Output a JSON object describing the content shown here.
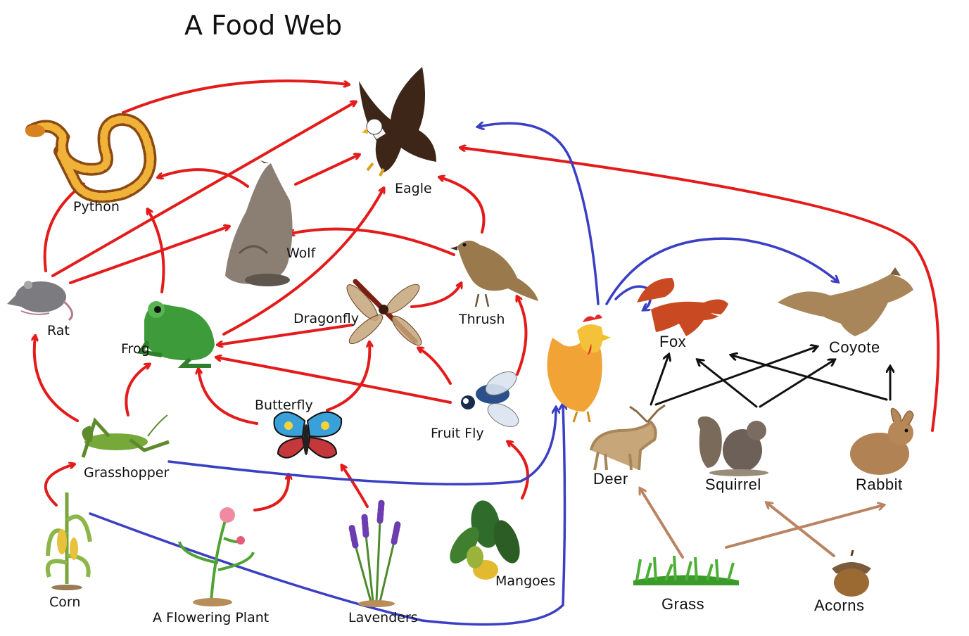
{
  "title": "A Food Web",
  "organisms": {
    "eagle": "Eagle",
    "python": "Python",
    "wolf": "Wolf",
    "rat": "Rat",
    "frog": "Frog",
    "dragonfly": "Dragonfly",
    "thrush": "Thrush",
    "butterfly": "Butterfly",
    "fruit_fly": "Fruit Fly",
    "grasshopper": "Grasshopper",
    "corn": "Corn",
    "flowering_plant": "A Flowering Plant",
    "lavenders": "Lavenders",
    "mangoes": "Mangoes",
    "fox": "Fox",
    "coyote": "Coyote",
    "deer": "Deer",
    "squirrel": "Squirrel",
    "rabbit": "Rabbit",
    "grass": "Grass",
    "acorns": "Acorns"
  },
  "colors": {
    "red_arrow": "#e31b1b",
    "blue_arrow": "#3a3fc4",
    "black_arrow": "#111111",
    "brown_arrow": "#b98462"
  },
  "icons": {
    "eagle": "eagle-icon",
    "python": "python-icon",
    "wolf": "wolf-icon",
    "rat": "rat-icon",
    "frog": "frog-icon",
    "dragonfly": "dragonfly-icon",
    "thrush": "thrush-icon",
    "butterfly": "butterfly-icon",
    "fruit_fly": "fruit-fly-icon",
    "grasshopper": "grasshopper-icon",
    "rooster": "rooster-icon",
    "corn": "corn-icon",
    "flowering_plant": "flowering-plant-icon",
    "lavenders": "lavender-icon",
    "mangoes": "mango-icon",
    "fox": "fox-icon",
    "coyote": "coyote-icon",
    "deer": "deer-icon",
    "squirrel": "squirrel-icon",
    "rabbit": "rabbit-icon",
    "grass": "grass-icon",
    "acorns": "acorn-icon"
  }
}
